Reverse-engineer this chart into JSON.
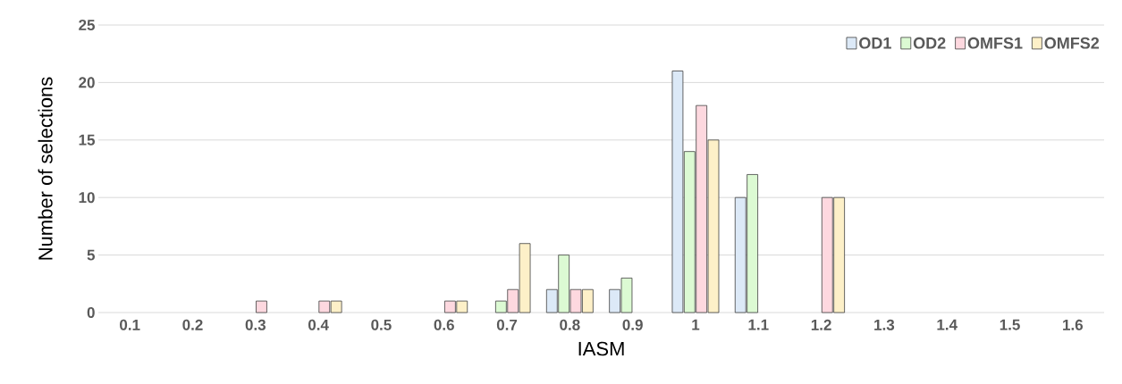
{
  "chart_data": {
    "type": "bar",
    "xlabel": "IASM",
    "ylabel": "Number of selections",
    "categories": [
      "0.1",
      "0.2",
      "0.3",
      "0.4",
      "0.5",
      "0.6",
      "0.7",
      "0.8",
      "0.9",
      "1",
      "1.1",
      "1.2",
      "1.3",
      "1.4",
      "1.5",
      "1.6"
    ],
    "series": [
      {
        "name": "OD1",
        "color": "#dce9f7",
        "values": [
          null,
          null,
          null,
          null,
          null,
          null,
          null,
          2,
          2,
          21,
          10,
          null,
          null,
          null,
          null,
          null
        ]
      },
      {
        "name": "OD2",
        "color": "#dcfad3",
        "values": [
          null,
          null,
          null,
          null,
          null,
          null,
          1,
          5,
          3,
          14,
          12,
          null,
          null,
          null,
          null,
          null
        ]
      },
      {
        "name": "OMFS1",
        "color": "#fdd8df",
        "values": [
          null,
          null,
          1,
          1,
          null,
          1,
          2,
          2,
          null,
          18,
          null,
          10,
          null,
          null,
          null,
          null
        ]
      },
      {
        "name": "OMFS2",
        "color": "#fdf0c8",
        "values": [
          null,
          null,
          null,
          1,
          null,
          1,
          6,
          2,
          null,
          15,
          null,
          10,
          null,
          null,
          null,
          null
        ]
      }
    ],
    "ylim": [
      0,
      25
    ],
    "yticks": [
      0,
      5,
      10,
      15,
      20,
      25
    ],
    "grid": "y",
    "legend": "top right"
  }
}
